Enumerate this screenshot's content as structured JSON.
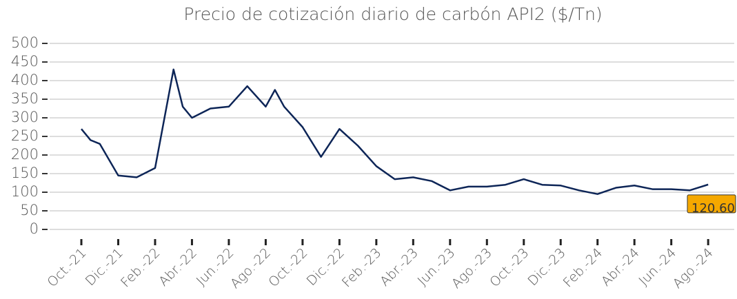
{
  "chart_data": {
    "type": "line",
    "title": "Precio de cotización diario de carbón API2 ($/Tn)",
    "x": [
      "2021-10",
      "2021-10",
      "2021-11",
      "2021-12",
      "2022-01",
      "2022-02",
      "2022-03",
      "2022-03",
      "2022-04",
      "2022-05",
      "2022-06",
      "2022-07",
      "2022-08",
      "2022-08",
      "2022-09",
      "2022-10",
      "2022-11",
      "2022-12",
      "2023-01",
      "2023-02",
      "2023-03",
      "2023-04",
      "2023-05",
      "2023-06",
      "2023-07",
      "2023-08",
      "2023-09",
      "2023-10",
      "2023-11",
      "2023-12",
      "2024-01",
      "2024-02",
      "2024-03",
      "2024-04",
      "2024-05",
      "2024-06",
      "2024-07",
      "2024-08"
    ],
    "series": [
      {
        "name": "API2",
        "color": "#0d2557",
        "values": [
          270,
          240,
          230,
          145,
          140,
          165,
          430,
          330,
          300,
          325,
          330,
          385,
          330,
          375,
          330,
          275,
          195,
          270,
          225,
          170,
          135,
          140,
          130,
          105,
          115,
          115,
          120,
          135,
          120,
          118,
          105,
          95,
          112,
          118,
          108,
          108,
          105,
          120.6
        ]
      }
    ],
    "annotation": {
      "value": 120.6,
      "label": "120.60"
    },
    "xticks": [
      {
        "value": "2021-10",
        "label": "Oct.-21"
      },
      {
        "value": "2021-12",
        "label": "Dic.-21"
      },
      {
        "value": "2022-02",
        "label": "Feb.-22"
      },
      {
        "value": "2022-04",
        "label": "Abr.-22"
      },
      {
        "value": "2022-06",
        "label": "Jun.-22"
      },
      {
        "value": "2022-08",
        "label": "Ago.-22"
      },
      {
        "value": "2022-10",
        "label": "Oct.-22"
      },
      {
        "value": "2022-12",
        "label": "Dic.-22"
      },
      {
        "value": "2023-02",
        "label": "Feb.-23"
      },
      {
        "value": "2023-04",
        "label": "Abr.-23"
      },
      {
        "value": "2023-06",
        "label": "Jun.-23"
      },
      {
        "value": "2023-08",
        "label": "Ago.-23"
      },
      {
        "value": "2023-10",
        "label": "Oct.-23"
      },
      {
        "value": "2023-12",
        "label": "Dic.-23"
      },
      {
        "value": "2024-02",
        "label": "Feb.-24"
      },
      {
        "value": "2024-04",
        "label": "Abr.-24"
      },
      {
        "value": "2024-06",
        "label": "Jun.-24"
      },
      {
        "value": "2024-08",
        "label": "Ago.-24"
      }
    ],
    "ylim": [
      0,
      500
    ],
    "yticks": [
      0,
      50,
      100,
      150,
      200,
      250,
      300,
      350,
      400,
      450,
      500
    ],
    "grid": true
  }
}
